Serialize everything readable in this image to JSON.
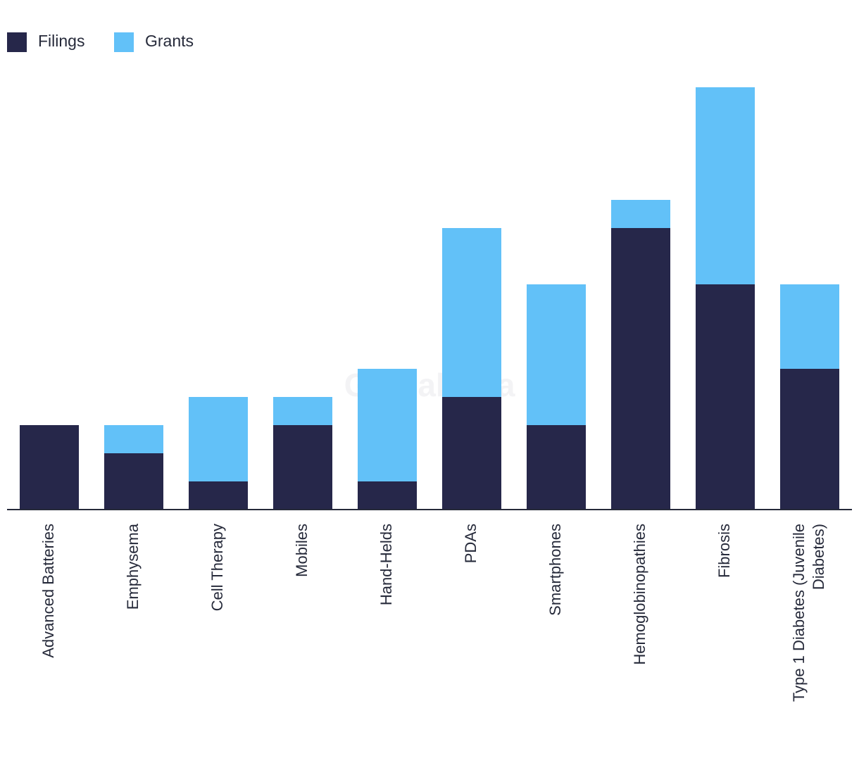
{
  "watermark": "GlobalData",
  "colors": {
    "filings": "#26274a",
    "grants": "#62c1f8",
    "axis": "#262a3a"
  },
  "chart_data": {
    "type": "bar",
    "stacked": true,
    "title": "",
    "xlabel": "",
    "ylabel": "",
    "ylim": [
      0,
      15
    ],
    "legend_position": "top-left",
    "categories": [
      "Advanced Batteries",
      "Emphysema",
      "Cell Therapy",
      "Mobiles",
      "Hand-Helds",
      "PDAs",
      "Smartphones",
      "Hemoglobinopathies",
      "Fibrosis",
      "Type 1 Diabetes (Juvenile Diabetes)"
    ],
    "category_label_lines": [
      [
        "Advanced Batteries"
      ],
      [
        "Emphysema"
      ],
      [
        "Cell Therapy"
      ],
      [
        "Mobiles"
      ],
      [
        "Hand-Helds"
      ],
      [
        "PDAs"
      ],
      [
        "Smartphones"
      ],
      [
        "Hemoglobinopathies"
      ],
      [
        "Fibrosis"
      ],
      [
        "Type 1 Diabetes (Juvenile",
        "Diabetes)"
      ]
    ],
    "series": [
      {
        "name": "Filings",
        "color": "#26274a",
        "values": [
          3,
          2,
          1,
          3,
          1,
          4,
          3,
          10,
          8,
          5
        ]
      },
      {
        "name": "Grants",
        "color": "#62c1f8",
        "values": [
          0,
          1,
          3,
          1,
          4,
          6,
          5,
          1,
          7,
          3
        ]
      }
    ]
  }
}
